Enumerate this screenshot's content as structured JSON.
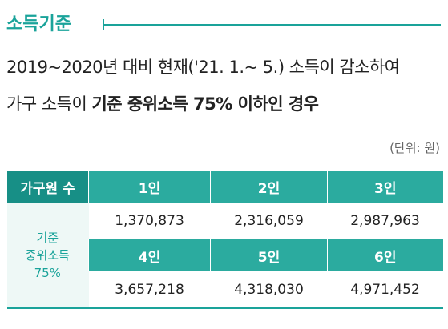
{
  "header": {
    "title": "소득기준"
  },
  "description": {
    "line1": "2019~2020년 대비 현재('21. 1.~ 5.) 소득이 감소하여",
    "line2_prefix": "가구 소득이 ",
    "line2_bold": "기준 중위소득 75% 이하인 경우"
  },
  "unit": "(단위: 원)",
  "table": {
    "header": [
      "가구원 수",
      "1인",
      "2인",
      "3인"
    ],
    "row_label": [
      "기준",
      "중위소득",
      "75%"
    ],
    "rows": [
      {
        "values": [
          "1,370,873",
          "2,316,059",
          "2,987,963"
        ]
      },
      {
        "headers": [
          "4인",
          "5인",
          "6인"
        ],
        "values": [
          "3,657,218",
          "4,318,030",
          "4,971,452"
        ]
      }
    ]
  }
}
